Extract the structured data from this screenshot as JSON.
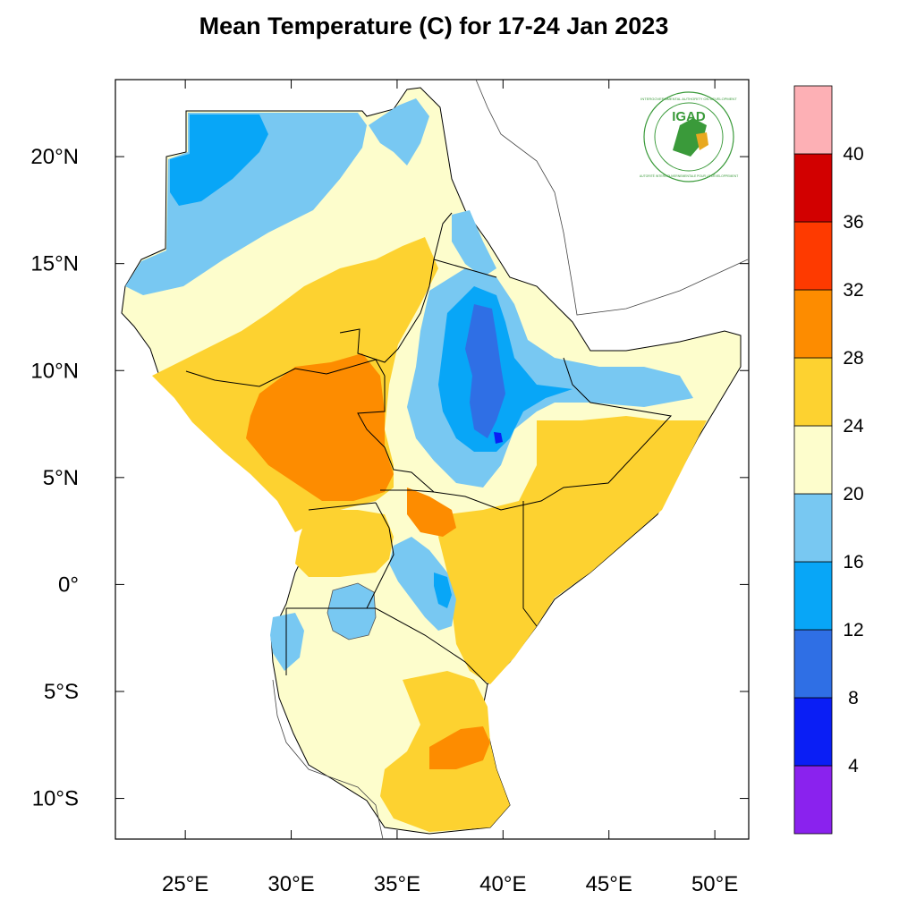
{
  "title": "Mean Temperature (C) for 17-24 Jan 2023",
  "map": {
    "lon_range": [
      21.7,
      51.6
    ],
    "lat_range": [
      -11.9,
      23.6
    ],
    "x_ticks": [
      {
        "value": 25,
        "label": "25°E"
      },
      {
        "value": 30,
        "label": "30°E"
      },
      {
        "value": 35,
        "label": "35°E"
      },
      {
        "value": 40,
        "label": "40°E"
      },
      {
        "value": 45,
        "label": "45°E"
      },
      {
        "value": 50,
        "label": "50°E"
      }
    ],
    "y_ticks": [
      {
        "value": 20,
        "label": "20°N"
      },
      {
        "value": 15,
        "label": "15°N"
      },
      {
        "value": 10,
        "label": "10°N"
      },
      {
        "value": 5,
        "label": "5°N"
      },
      {
        "value": 0,
        "label": "0°"
      },
      {
        "value": -5,
        "label": "5°S"
      },
      {
        "value": -10,
        "label": "10°S"
      }
    ]
  },
  "colorbar": {
    "labels": [
      "4",
      "8",
      "12",
      "16",
      "20",
      "24",
      "28",
      "32",
      "36",
      "40"
    ],
    "colors": [
      "#8a22ee",
      "#0a1ef5",
      "#2f6fe5",
      "#08a6f7",
      "#78c8f2",
      "#fdfdcc",
      "#fdd230",
      "#fd8c00",
      "#fe3a00",
      "#d20000",
      "#fdb0b5"
    ]
  },
  "logo": {
    "acronym": "IGAD",
    "top_text": "INTERGOVERNMENTAL AUTHORITY ON DEVELOPMENT",
    "bottom_text": "AUTORITÉ INTERGOUVERNEMENTALE POUR LE DÉVELOPPEMENT",
    "brand_color": "#3a9a3a"
  }
}
